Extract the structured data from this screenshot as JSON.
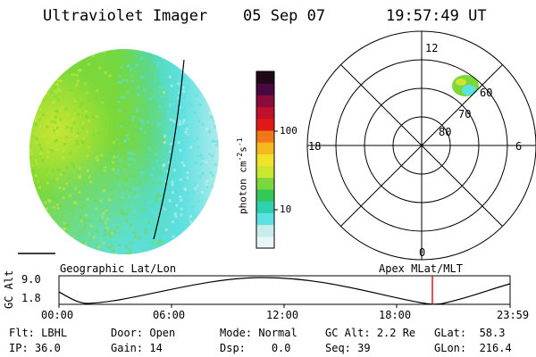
{
  "header": {
    "title": "Ultraviolet Imager",
    "date": "05 Sep 07",
    "time": "19:57:49 UT"
  },
  "colorbar": {
    "unit_label": "photon cm",
    "unit_exp1": "-2",
    "unit_mid": "s",
    "unit_exp2": "-1",
    "ticks": [
      "100",
      "10"
    ],
    "colors": [
      "#e6f5f5",
      "#c8ecec",
      "#5de0e0",
      "#2fd0b0",
      "#34c85a",
      "#7ad83a",
      "#c8e632",
      "#f0e22a",
      "#f5b81e",
      "#f07818",
      "#e01818",
      "#c0102a",
      "#8a0c3a",
      "#4a0840",
      "#200818"
    ]
  },
  "polar_plot": {
    "hour_labels": {
      "top": "12",
      "left": "18",
      "right": "6",
      "bottom": "0"
    },
    "lat_labels": [
      "60",
      "70",
      "80"
    ]
  },
  "globe": {
    "colors": {
      "green": "#7ad83a",
      "yellow": "#c8e632",
      "cyan": "#5de0e0",
      "pale": "#c8ecec"
    }
  },
  "timeline": {
    "left_title": "Geographic Lat/Lon",
    "right_title": "Apex  MLat/MLT",
    "ylabel": "GC Alt",
    "yticks": [
      "9.0",
      "1.8"
    ],
    "xticks": [
      "00:00",
      "06:00",
      "12:00",
      "18:00",
      "23:59"
    ],
    "marker_time": "19:57",
    "marker_color": "#e01818"
  },
  "info": {
    "row1": [
      {
        "label": "Flt:",
        "value": "LBHL"
      },
      {
        "label": "Door:",
        "value": "Open"
      },
      {
        "label": "Mode:",
        "value": "Normal"
      },
      {
        "label": "GC Alt:",
        "value": "2.2 Re"
      },
      {
        "label": "GLat:",
        "value": "58.3"
      }
    ],
    "row2": [
      {
        "label": "IP:",
        "value": "36.0"
      },
      {
        "label": "Gain:",
        "value": "14"
      },
      {
        "label": "Dsp:",
        "value": "0.0"
      },
      {
        "label": "Seq:",
        "value": "39"
      },
      {
        "label": "GLon:",
        "value": "216.4"
      }
    ]
  }
}
